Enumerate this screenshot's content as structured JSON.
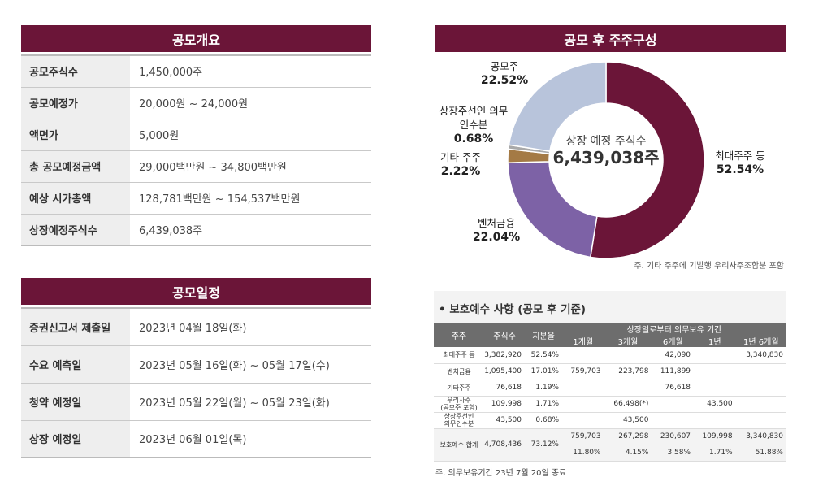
{
  "overview": {
    "title": "공모개요",
    "rows": [
      {
        "label": "공모주식수",
        "value": "1,450,000주"
      },
      {
        "label": "공모예정가",
        "value": "20,000원 ~ 24,000원"
      },
      {
        "label": "액면가",
        "value": "5,000원"
      },
      {
        "label": "총 공모예정금액",
        "value": "29,000백만원 ~ 34,800백만원"
      },
      {
        "label": "예상 시가총액",
        "value": "128,781백만원 ~ 154,537백만원"
      },
      {
        "label": "상장예정주식수",
        "value": "6,439,038주"
      }
    ]
  },
  "schedule": {
    "title": "공모일정",
    "rows": [
      {
        "label": "증권신고서 제출일",
        "value": "2023년 04월 18일(화)"
      },
      {
        "label": "수요 예측일",
        "value": "2023년 05월 16일(화) ~ 05월 17일(수)"
      },
      {
        "label": "청약 예정일",
        "value": "2023년 05월 22일(월) ~ 05월 23일(화)"
      },
      {
        "label": "상장 예정일",
        "value": "2023년 06월 01일(목)"
      }
    ]
  },
  "chart_data": {
    "type": "pie",
    "title": "공모 후 주주구성",
    "center_label": "상장 예정 주식수",
    "center_value": "6,439,038주",
    "slices": [
      {
        "name": "최대주주 등",
        "value": 52.54,
        "value_label": "52.54%",
        "color": "#6b1538"
      },
      {
        "name": "벤처금융",
        "value": 22.04,
        "value_label": "22.04%",
        "color": "#7d62a6"
      },
      {
        "name": "기타 주주",
        "value": 2.22,
        "value_label": "2.22%",
        "color": "#a47a45"
      },
      {
        "name": "상장주선인 의무인수분",
        "value": 0.68,
        "value_label": "0.68%",
        "color": "#a9a9a9"
      },
      {
        "name": "공모주",
        "value": 22.52,
        "value_label": "22.52%",
        "color": "#b8c4db"
      }
    ],
    "note": "주. 기타 주주에 기발행 우리사주조합분 포함"
  },
  "lockup": {
    "title": "• 보호예수 사항 (공모 후 기준)",
    "headers": {
      "holder": "주주",
      "shares": "주식수",
      "ratio": "지분율",
      "period": "상장일로부터 의무보유 기간",
      "m1": "1개월",
      "m3": "3개월",
      "m6": "6개월",
      "y1": "1년",
      "y1m6": "1년 6개월"
    },
    "rows": [
      {
        "name": "최대주주 등",
        "shares": "3,382,920",
        "ratio": "52.54%",
        "m1": "",
        "m3": "",
        "m6": "42,090",
        "y1": "",
        "y1m6": "3,340,830"
      },
      {
        "name": "벤처금융",
        "shares": "1,095,400",
        "ratio": "17.01%",
        "m1": "759,703",
        "m3": "223,798",
        "m6": "111,899",
        "y1": "",
        "y1m6": ""
      },
      {
        "name": "기타주주",
        "shares": "76,618",
        "ratio": "1.19%",
        "m1": "",
        "m3": "",
        "m6": "76,618",
        "y1": "",
        "y1m6": ""
      },
      {
        "name": "우리사주",
        "name2": "(공모주 포함)",
        "shares": "109,998",
        "ratio": "1.71%",
        "m1": "",
        "m3": "66,498(*)",
        "m6": "",
        "y1": "43,500",
        "y1m6": ""
      },
      {
        "name": "상장주선인",
        "name2": "의무인수분",
        "shares": "43,500",
        "ratio": "0.68%",
        "m1": "",
        "m3": "43,500",
        "m6": "",
        "y1": "",
        "y1m6": ""
      }
    ],
    "total": {
      "name": "보호예수 합계",
      "shares": "4,708,436",
      "ratio": "73.12%",
      "m1": "759,703",
      "m3": "267,298",
      "m6": "230,607",
      "y1": "109,998",
      "y1m6": "3,340,830",
      "m1p": "11.80%",
      "m3p": "4.15%",
      "m6p": "3.58%",
      "y1p": "1.71%",
      "y1m6p": "51.88%"
    },
    "note": "주. 의무보유기간 23년 7월 20일 종료"
  }
}
